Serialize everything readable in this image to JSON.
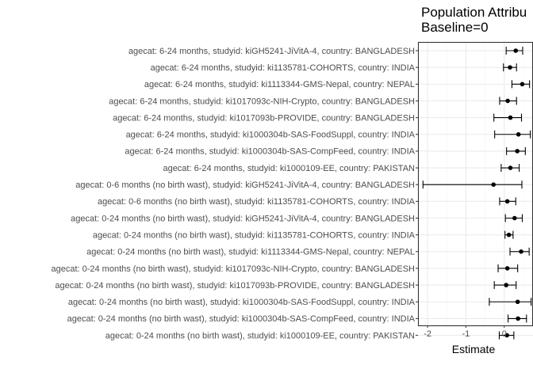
{
  "chart_data": {
    "type": "forest",
    "title": "Population Attribu",
    "subtitle": "Baseline=0",
    "xlabel": "Estimate",
    "ylabel": "",
    "xlim": [
      -2.25,
      0.75
    ],
    "xticks": [
      -2,
      -1,
      0
    ],
    "grid": true,
    "legend": "none",
    "colors": {
      "point": "#000000",
      "errorbar": "#000000",
      "panel_border": "#333333",
      "grid_major": "#ebebeb",
      "grid_minor": "#f5f5f5"
    },
    "rows": [
      {
        "label": "agecat: 6-24 months, studyid: kiGH5241-JiVitA-4, country: BANGLADESH",
        "estimate": 0.3,
        "lower": 0.05,
        "upper": 0.48
      },
      {
        "label": "agecat: 6-24 months, studyid: ki1135781-COHORTS, country: INDIA",
        "estimate": 0.15,
        "lower": -0.02,
        "upper": 0.32
      },
      {
        "label": "agecat: 6-24 months, studyid: ki1113344-GMS-Nepal, country: NEPAL",
        "estimate": 0.47,
        "lower": 0.2,
        "upper": 0.66
      },
      {
        "label": "agecat: 6-24 months, studyid: ki1017093c-NIH-Crypto, country: BANGLADESH",
        "estimate": 0.09,
        "lower": -0.12,
        "upper": 0.32
      },
      {
        "label": "agecat: 6-24 months, studyid: ki1017093b-PROVIDE, country: BANGLADESH",
        "estimate": 0.16,
        "lower": -0.27,
        "upper": 0.45
      },
      {
        "label": "agecat: 6-24 months, studyid: ki1000304b-SAS-FoodSuppl, country: INDIA",
        "estimate": 0.37,
        "lower": -0.25,
        "upper": 0.68
      },
      {
        "label": "agecat: 6-24 months, studyid: ki1000304b-SAS-CompFeed, country: INDIA",
        "estimate": 0.34,
        "lower": 0.06,
        "upper": 0.55
      },
      {
        "label": "agecat: 6-24 months, studyid: ki1000109-EE, country: PAKISTAN",
        "estimate": 0.16,
        "lower": -0.08,
        "upper": 0.39
      },
      {
        "label": "agecat: 0-6 months (no birth wast), studyid: kiGH5241-JiVitA-4, country: BANGLADESH",
        "estimate": -0.28,
        "lower": -2.12,
        "upper": 0.46
      },
      {
        "label": "agecat: 0-6 months (no birth wast), studyid: ki1135781-COHORTS, country: INDIA",
        "estimate": 0.08,
        "lower": -0.12,
        "upper": 0.3
      },
      {
        "label": "agecat: 0-24 months (no birth wast), studyid: kiGH5241-JiVitA-4, country: BANGLADESH",
        "estimate": 0.27,
        "lower": 0.03,
        "upper": 0.47
      },
      {
        "label": "agecat: 0-24 months (no birth wast), studyid: ki1135781-COHORTS, country: INDIA",
        "estimate": 0.12,
        "lower": 0.02,
        "upper": 0.23
      },
      {
        "label": "agecat: 0-24 months (no birth wast), studyid: ki1113344-GMS-Nepal, country: NEPAL",
        "estimate": 0.44,
        "lower": 0.15,
        "upper": 0.65
      },
      {
        "label": "agecat: 0-24 months (no birth wast), studyid: ki1017093c-NIH-Crypto, country: BANGLADESH",
        "estimate": 0.08,
        "lower": -0.16,
        "upper": 0.35
      },
      {
        "label": "agecat: 0-24 months (no birth wast), studyid: ki1017093b-PROVIDE, country: BANGLADESH",
        "estimate": 0.05,
        "lower": -0.26,
        "upper": 0.31
      },
      {
        "label": "agecat: 0-24 months (no birth wast), studyid: ki1000304b-SAS-FoodSuppl, country: INDIA",
        "estimate": 0.35,
        "lower": -0.39,
        "upper": 0.7
      },
      {
        "label": "agecat: 0-24 months (no birth wast), studyid: ki1000304b-SAS-CompFeed, country: INDIA",
        "estimate": 0.36,
        "lower": 0.1,
        "upper": 0.58
      },
      {
        "label": "agecat: 0-24 months (no birth wast), studyid: ki1000109-EE, country: PAKISTAN",
        "estimate": 0.07,
        "lower": -0.13,
        "upper": 0.25
      }
    ]
  }
}
